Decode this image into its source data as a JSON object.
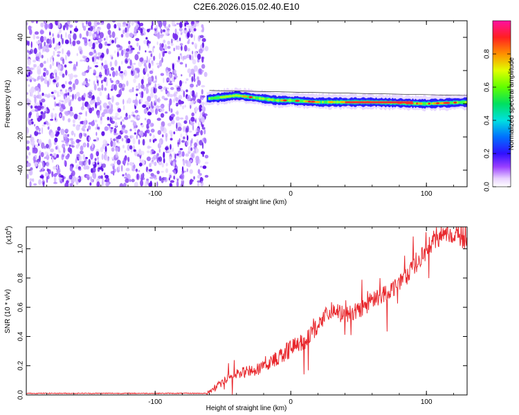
{
  "figure_title": "C2E6.2026.015.02.40.E10",
  "colors": {
    "snr_line": "#e8282d",
    "grid_line": "#000000",
    "background": "#ffffff",
    "noise_purple": "#7a2cf0"
  },
  "chart_data": [
    {
      "type": "heatmap",
      "title": "",
      "xlabel": "Height of straight line (km)",
      "ylabel": "Frequency (Hz)",
      "xlim": [
        -195,
        130
      ],
      "ylim": [
        -50,
        50
      ],
      "xticks": [
        -100,
        0,
        100
      ],
      "xtick_labels": [
        "-100",
        "0",
        "100"
      ],
      "yticks": [
        -40,
        -20,
        0,
        20,
        40
      ],
      "ytick_labels": [
        "-40",
        "-20",
        "0",
        "20",
        "40"
      ],
      "noise_region_x": [
        -195,
        -62
      ],
      "noise_region_level": 0.1,
      "signal_band": {
        "x_start": -62,
        "x_end": 130,
        "center_freq": [
          {
            "x": -62,
            "f": 3
          },
          {
            "x": -50,
            "f": 4
          },
          {
            "x": -40,
            "f": 5
          },
          {
            "x": -30,
            "f": 4
          },
          {
            "x": -20,
            "f": 3
          },
          {
            "x": -10,
            "f": 2
          },
          {
            "x": 0,
            "f": 2
          },
          {
            "x": 20,
            "f": 1
          },
          {
            "x": 60,
            "f": 1
          },
          {
            "x": 100,
            "f": 0
          },
          {
            "x": 130,
            "f": 1
          }
        ],
        "bandwidth_hz": 5,
        "peak_amplitude": 0.95
      },
      "colorbar": {
        "label": "Normalized spectral amplitude",
        "range": [
          0,
          1
        ],
        "ticks": [
          0.0,
          0.2,
          0.4,
          0.6,
          0.8
        ],
        "tick_labels": [
          "0.0",
          "0.2",
          "0.4",
          "0.6",
          "0.8"
        ]
      },
      "grid": false
    },
    {
      "type": "line",
      "title": "",
      "xlabel": "Height of straight line (km)",
      "ylabel": "SNR (10 * v/v)",
      "y_multiplier": "(x10",
      "y_multiplier_exp": "4",
      "y_multiplier_close": ")",
      "xlim": [
        -195,
        130
      ],
      "ylim": [
        0,
        1.15
      ],
      "xticks": [
        -100,
        0,
        100
      ],
      "xtick_labels": [
        "-100",
        "0",
        "100"
      ],
      "yticks": [
        0.0,
        0.2,
        0.4,
        0.6,
        0.8,
        1.0
      ],
      "ytick_labels": [
        "0.0",
        "0.2",
        "0.4",
        "0.6",
        "0.8",
        "1.0"
      ],
      "grid": false,
      "series": [
        {
          "values_trend": [
            {
              "x": -195,
              "y": 0.01
            },
            {
              "x": -62,
              "y": 0.01
            },
            {
              "x": -60,
              "y": 0.02
            },
            {
              "x": -48,
              "y": 0.1
            },
            {
              "x": -40,
              "y": 0.14
            },
            {
              "x": -30,
              "y": 0.16
            },
            {
              "x": -20,
              "y": 0.18
            },
            {
              "x": -10,
              "y": 0.25
            },
            {
              "x": 0,
              "y": 0.31
            },
            {
              "x": 8,
              "y": 0.35
            },
            {
              "x": 15,
              "y": 0.4
            },
            {
              "x": 22,
              "y": 0.5
            },
            {
              "x": 30,
              "y": 0.57
            },
            {
              "x": 40,
              "y": 0.54
            },
            {
              "x": 55,
              "y": 0.6
            },
            {
              "x": 65,
              "y": 0.67
            },
            {
              "x": 75,
              "y": 0.72
            },
            {
              "x": 85,
              "y": 0.82
            },
            {
              "x": 92,
              "y": 0.88
            },
            {
              "x": 100,
              "y": 1.0
            },
            {
              "x": 108,
              "y": 1.06
            },
            {
              "x": 115,
              "y": 1.1
            },
            {
              "x": 122,
              "y": 1.09
            },
            {
              "x": 130,
              "y": 1.03
            }
          ],
          "jitter": 0.04
        }
      ]
    }
  ]
}
